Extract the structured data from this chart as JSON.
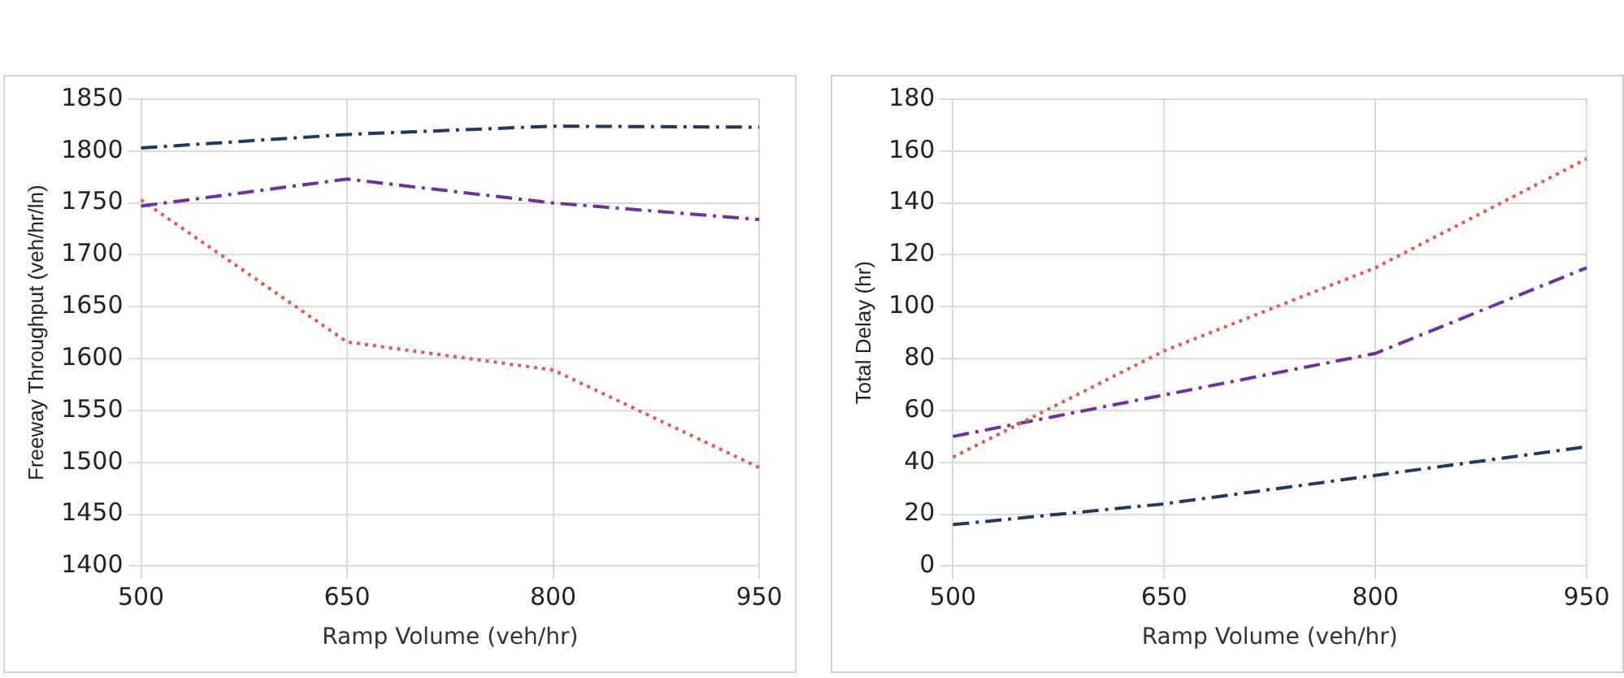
{
  "chart_data": [
    {
      "type": "line",
      "xlabel": "Ramp Volume (veh/hr)",
      "ylabel": "Freeway Throughput (veh/hr/ln)",
      "categories": [
        "500",
        "650",
        "800",
        "950"
      ],
      "ylim": [
        1400,
        1850
      ],
      "yticks": [
        1400,
        1450,
        1500,
        1550,
        1600,
        1650,
        1700,
        1750,
        1800,
        1850
      ],
      "grid": true,
      "legend": false,
      "marker": "none",
      "series": [
        {
          "color": "#1f3864",
          "line_style": "dashed",
          "values": [
            1803,
            1816,
            1824,
            1823
          ]
        },
        {
          "color": "#7030a0",
          "line_style": "dashed",
          "values": [
            1747,
            1773,
            1750,
            1734
          ]
        },
        {
          "color": "#e0584f",
          "line_style": "dotted",
          "values": [
            1753,
            1616,
            1589,
            1495
          ]
        }
      ]
    },
    {
      "type": "line",
      "xlabel": "Ramp Volume (veh/hr)",
      "ylabel": "Total Delay (hr)",
      "categories": [
        "500",
        "650",
        "800",
        "950"
      ],
      "ylim": [
        0,
        180
      ],
      "yticks": [
        0,
        20,
        40,
        60,
        80,
        100,
        120,
        140,
        160,
        180
      ],
      "grid": true,
      "legend": false,
      "marker": "none",
      "series": [
        {
          "color": "#e0584f",
          "line_style": "dotted",
          "values": [
            42,
            83,
            115,
            157
          ]
        },
        {
          "color": "#7030a0",
          "line_style": "dashed",
          "values": [
            50,
            66,
            82,
            115
          ]
        },
        {
          "color": "#1f3864",
          "line_style": "dashed",
          "values": [
            16,
            24,
            35,
            46
          ]
        }
      ]
    }
  ]
}
